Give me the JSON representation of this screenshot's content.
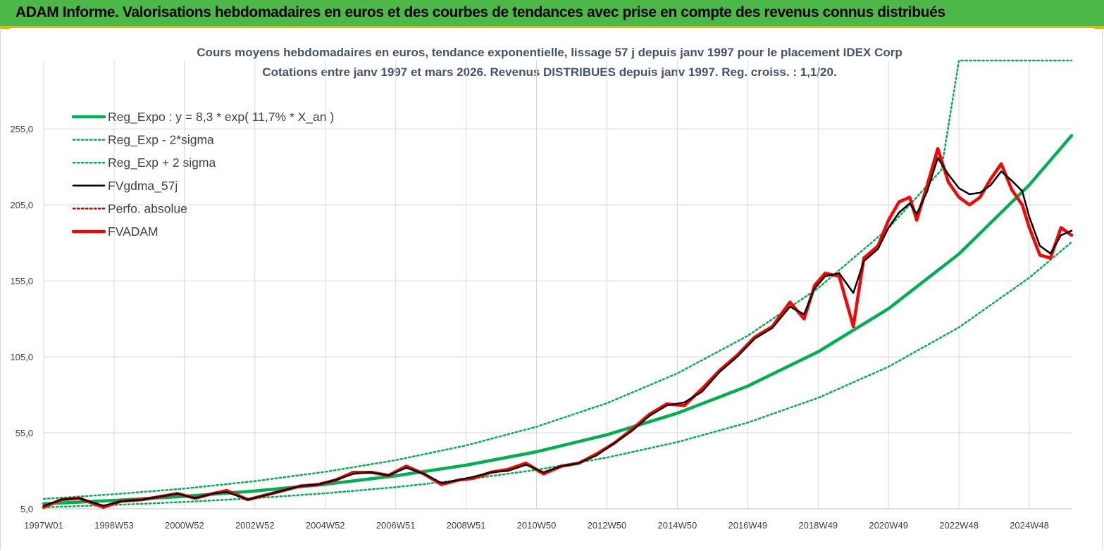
{
  "header": {
    "title": "ADAM Informe. Valorisations hebdomadaires en euros et des courbes de tendances avec prise en compte des revenus connus distribués"
  },
  "colors": {
    "banner": "#4cb848",
    "banner_border": "#e8b400",
    "reg_expo": "#00b050",
    "sigma_lines": "#00b050",
    "fv_gdma": "#000000",
    "perfo_absolue": "#c00000",
    "fvadam": "#ff0000",
    "title_text": "#44546a"
  },
  "chart_data": {
    "type": "line",
    "title": "Cours moyens hebdomadaires en euros, tendance exponentielle, lissage 57 j depuis janv 1997 pour le placement IDEX Corp",
    "subtitle": "Cotations entre janv 1997 et mars 2026. Revenus DISTRIBUES depuis janv 1997. Reg. croiss. : 1,1/20.",
    "xlabel": "",
    "ylabel": "",
    "x_range": [
      1997.0,
      2026.2
    ],
    "ylim": [
      5,
      300
    ],
    "y_ticks": [
      5.0,
      55.0,
      105.0,
      155.0,
      205.0,
      255.0
    ],
    "y_tick_labels": [
      "5,0",
      "55,0",
      "105,0",
      "155,0",
      "205,0",
      "255,0"
    ],
    "x_ticks": [
      1997.0,
      1999.0,
      2001.0,
      2003.0,
      2005.0,
      2007.0,
      2009.0,
      2011.0,
      2013.0,
      2015.0,
      2017.0,
      2019.0,
      2021.0,
      2023.0,
      2025.0
    ],
    "x_tick_labels": [
      "1997W01",
      "1998W53",
      "2000W52",
      "2002W52",
      "2004W52",
      "2006W51",
      "2008W51",
      "2010W50",
      "2012W50",
      "2014W50",
      "2016W49",
      "2018W49",
      "2020W49",
      "2022W48",
      "2024W48"
    ],
    "grid": true,
    "legend_position": "top-left",
    "series": [
      {
        "name": "Reg_Expo : y = 8,3 * exp( 11,7% *  X_an )",
        "style": "solid-thick",
        "color": "#00b050",
        "x": [
          1997.0,
          1999.0,
          2001.0,
          2003.0,
          2005.0,
          2007.0,
          2009.0,
          2011.0,
          2013.0,
          2015.0,
          2017.0,
          2019.0,
          2021.0,
          2023.0,
          2025.0,
          2026.2
        ],
        "values": [
          8.3,
          10.5,
          13.2,
          16.7,
          21.1,
          26.7,
          33.7,
          42.5,
          53.7,
          67.9,
          85.7,
          108.3,
          136.7,
          172.7,
          218.1,
          250.6
        ]
      },
      {
        "name": "Reg_Exp - 2*sigma",
        "style": "dotted",
        "color": "#00b050",
        "x": [
          1997.0,
          1999.0,
          2001.0,
          2003.0,
          2005.0,
          2007.0,
          2009.0,
          2011.0,
          2013.0,
          2015.0,
          2017.0,
          2019.0,
          2021.0,
          2023.0,
          2025.0,
          2026.2
        ],
        "values": [
          6.0,
          7.5,
          9.5,
          12.0,
          15.2,
          19.2,
          24.3,
          30.6,
          38.7,
          48.9,
          61.7,
          78.0,
          98.5,
          124.4,
          157.1,
          180.5
        ]
      },
      {
        "name": "Reg_Exp + 2 sigma",
        "style": "dotted",
        "color": "#00b050",
        "x": [
          1997.0,
          1999.0,
          2001.0,
          2003.0,
          2005.0,
          2007.0,
          2009.0,
          2011.0,
          2013.0,
          2015.0,
          2017.0,
          2019.0,
          2021.0,
          2022.5,
          2023.0,
          2026.2
        ],
        "values": [
          11.5,
          14.6,
          18.3,
          23.2,
          29.3,
          37.0,
          46.7,
          59.0,
          74.5,
          94.1,
          118.9,
          150.2,
          189.7,
          228.0,
          300.0,
          300.0
        ]
      },
      {
        "name": "FVgdma_57j",
        "style": "solid",
        "color": "#000000",
        "x": [
          1997.0,
          1997.5,
          1998.0,
          1998.7,
          1999.2,
          1999.8,
          2000.3,
          2000.8,
          2001.3,
          2001.8,
          2002.2,
          2002.8,
          2003.3,
          2003.8,
          2004.3,
          2004.8,
          2005.3,
          2005.8,
          2006.3,
          2006.8,
          2007.3,
          2007.8,
          2008.3,
          2008.8,
          2009.2,
          2009.7,
          2010.2,
          2010.7,
          2011.2,
          2011.7,
          2012.2,
          2012.7,
          2013.2,
          2013.7,
          2014.2,
          2014.7,
          2015.2,
          2015.7,
          2016.2,
          2016.7,
          2017.2,
          2017.7,
          2018.2,
          2018.6,
          2018.9,
          2019.2,
          2019.6,
          2020.0,
          2020.3,
          2020.7,
          2021.0,
          2021.3,
          2021.6,
          2021.8,
          2022.1,
          2022.4,
          2022.7,
          2023.0,
          2023.3,
          2023.6,
          2023.9,
          2024.2,
          2024.5,
          2024.8,
          2025.0,
          2025.3,
          2025.6,
          2025.9,
          2026.2
        ],
        "values": [
          7,
          11,
          12,
          7,
          10,
          11,
          13,
          15,
          12,
          15,
          16,
          11,
          14,
          17,
          20,
          21,
          24,
          28,
          29,
          27,
          32,
          28,
          22,
          24,
          26,
          29,
          30,
          34,
          29,
          33,
          35,
          40,
          48,
          56,
          66,
          73,
          75,
          82,
          95,
          105,
          117,
          124,
          138,
          133,
          150,
          158,
          160,
          147,
          168,
          176,
          190,
          200,
          206,
          199,
          214,
          236,
          225,
          216,
          212,
          213,
          218,
          227,
          221,
          214,
          197,
          178,
          173,
          185,
          188
        ]
      },
      {
        "name": "Perfo. absolue",
        "style": "dotted",
        "color": "#c00000",
        "x": [
          1997.0,
          1997.5,
          1998.0,
          1998.7,
          1999.2,
          1999.8,
          2000.3,
          2000.8,
          2001.3,
          2001.8,
          2002.2,
          2002.8,
          2003.3,
          2003.8,
          2004.3,
          2004.8,
          2005.3,
          2005.8,
          2006.3,
          2006.8,
          2007.3,
          2007.8,
          2008.3,
          2008.8,
          2009.2,
          2009.7,
          2010.2,
          2010.7,
          2011.2,
          2011.7,
          2012.2,
          2012.7,
          2013.2,
          2013.7,
          2014.2,
          2014.7,
          2015.2,
          2015.7,
          2016.2,
          2016.7,
          2017.2,
          2017.7,
          2018.2,
          2018.6,
          2018.9,
          2019.2,
          2019.6,
          2020.0,
          2020.3,
          2020.7,
          2021.0,
          2021.3,
          2021.6,
          2021.8,
          2022.1,
          2022.4,
          2022.7,
          2023.0,
          2023.3,
          2023.6,
          2023.9,
          2024.2,
          2024.5,
          2024.8,
          2025.0,
          2025.3,
          2025.6,
          2025.9,
          2026.2
        ],
        "values": [
          6,
          11,
          12,
          6,
          10,
          11,
          13,
          15,
          12,
          15,
          17,
          11,
          14,
          17,
          20,
          21,
          24,
          29,
          29,
          27,
          33,
          28,
          21,
          24,
          25,
          29,
          31,
          35,
          28,
          33,
          35,
          41,
          48,
          57,
          67,
          74,
          73,
          84,
          96,
          106,
          118,
          125,
          141,
          130,
          152,
          160,
          158,
          125,
          170,
          178,
          195,
          207,
          210,
          195,
          218,
          242,
          220,
          210,
          205,
          210,
          222,
          232,
          215,
          205,
          190,
          172,
          170,
          190,
          185
        ]
      },
      {
        "name": "FVADAM",
        "style": "solid-thick",
        "color": "#ff0000",
        "x": [
          1997.0,
          1997.5,
          1998.0,
          1998.7,
          1999.2,
          1999.8,
          2000.3,
          2000.8,
          2001.3,
          2001.8,
          2002.2,
          2002.8,
          2003.3,
          2003.8,
          2004.3,
          2004.8,
          2005.3,
          2005.8,
          2006.3,
          2006.8,
          2007.3,
          2007.8,
          2008.3,
          2008.8,
          2009.2,
          2009.7,
          2010.2,
          2010.7,
          2011.2,
          2011.7,
          2012.2,
          2012.7,
          2013.2,
          2013.7,
          2014.2,
          2014.7,
          2015.2,
          2015.7,
          2016.2,
          2016.7,
          2017.2,
          2017.7,
          2018.2,
          2018.6,
          2018.9,
          2019.2,
          2019.6,
          2020.0,
          2020.3,
          2020.7,
          2021.0,
          2021.3,
          2021.6,
          2021.8,
          2022.1,
          2022.4,
          2022.7,
          2023.0,
          2023.3,
          2023.6,
          2023.9,
          2024.2,
          2024.5,
          2024.8,
          2025.0,
          2025.3,
          2025.6,
          2025.9,
          2026.2
        ],
        "values": [
          6,
          11,
          12,
          6,
          10,
          11,
          13,
          15,
          12,
          15,
          17,
          11,
          14,
          17,
          20,
          21,
          24,
          29,
          29,
          27,
          33,
          28,
          21,
          24,
          25,
          29,
          31,
          35,
          28,
          33,
          35,
          41,
          48,
          57,
          67,
          74,
          73,
          84,
          96,
          106,
          118,
          125,
          141,
          130,
          152,
          160,
          158,
          125,
          170,
          178,
          195,
          207,
          210,
          195,
          218,
          242,
          220,
          210,
          205,
          210,
          222,
          232,
          215,
          205,
          190,
          172,
          170,
          190,
          185
        ]
      }
    ]
  }
}
